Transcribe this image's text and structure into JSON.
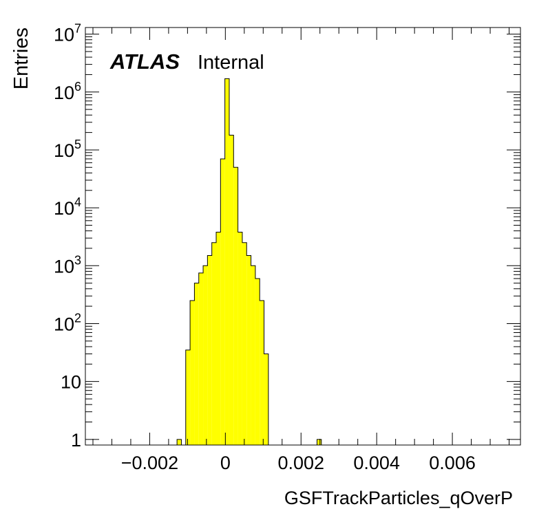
{
  "chart_data": {
    "type": "bar",
    "style": "filled-histogram",
    "title": "",
    "xlabel": "GSFTrackParticles_qOverP",
    "ylabel": "Entries",
    "y_scale": "log",
    "xlim": [
      -0.0037,
      0.0078
    ],
    "ylim": [
      0.8,
      13000000
    ],
    "x_ticks": [
      {
        "value": -0.002,
        "label": "−0.002"
      },
      {
        "value": 0,
        "label": "0"
      },
      {
        "value": 0.002,
        "label": "0.002"
      },
      {
        "value": 0.004,
        "label": "0.004"
      },
      {
        "value": 0.006,
        "label": "0.006"
      }
    ],
    "y_ticks": [
      {
        "value": 1,
        "base": "1",
        "exp": ""
      },
      {
        "value": 10,
        "base": "10",
        "exp": ""
      },
      {
        "value": 100,
        "base": "10",
        "exp": "2"
      },
      {
        "value": 1000,
        "base": "10",
        "exp": "3"
      },
      {
        "value": 10000,
        "base": "10",
        "exp": "4"
      },
      {
        "value": 100000,
        "base": "10",
        "exp": "5"
      },
      {
        "value": 1000000,
        "base": "10",
        "exp": "6"
      },
      {
        "value": 10000000,
        "base": "10",
        "exp": "7"
      }
    ],
    "grid": false,
    "fill_color": "#ffff00",
    "line_color": "#000000",
    "bin_width": 0.000115,
    "bins": [
      {
        "x": -0.00122,
        "y": 1
      },
      {
        "x": -0.00099,
        "y": 35
      },
      {
        "x": -0.000875,
        "y": 250
      },
      {
        "x": -0.00076,
        "y": 500
      },
      {
        "x": -0.000645,
        "y": 750
      },
      {
        "x": -0.00053,
        "y": 1000
      },
      {
        "x": -0.000415,
        "y": 1500
      },
      {
        "x": -0.0003,
        "y": 2500
      },
      {
        "x": -0.000185,
        "y": 3800
      },
      {
        "x": -7e-05,
        "y": 70000
      },
      {
        "x": 4.5e-05,
        "y": 1700000
      },
      {
        "x": 0.00016,
        "y": 180000
      },
      {
        "x": 0.000275,
        "y": 50000
      },
      {
        "x": 0.00039,
        "y": 3800
      },
      {
        "x": 0.000505,
        "y": 2500
      },
      {
        "x": 0.00062,
        "y": 1500
      },
      {
        "x": 0.000735,
        "y": 1000
      },
      {
        "x": 0.00085,
        "y": 600
      },
      {
        "x": 0.000965,
        "y": 250
      },
      {
        "x": 0.00108,
        "y": 30
      },
      {
        "x": 0.00248,
        "y": 1
      }
    ]
  },
  "annotation": {
    "experiment": "ATLAS",
    "status": "Internal"
  }
}
